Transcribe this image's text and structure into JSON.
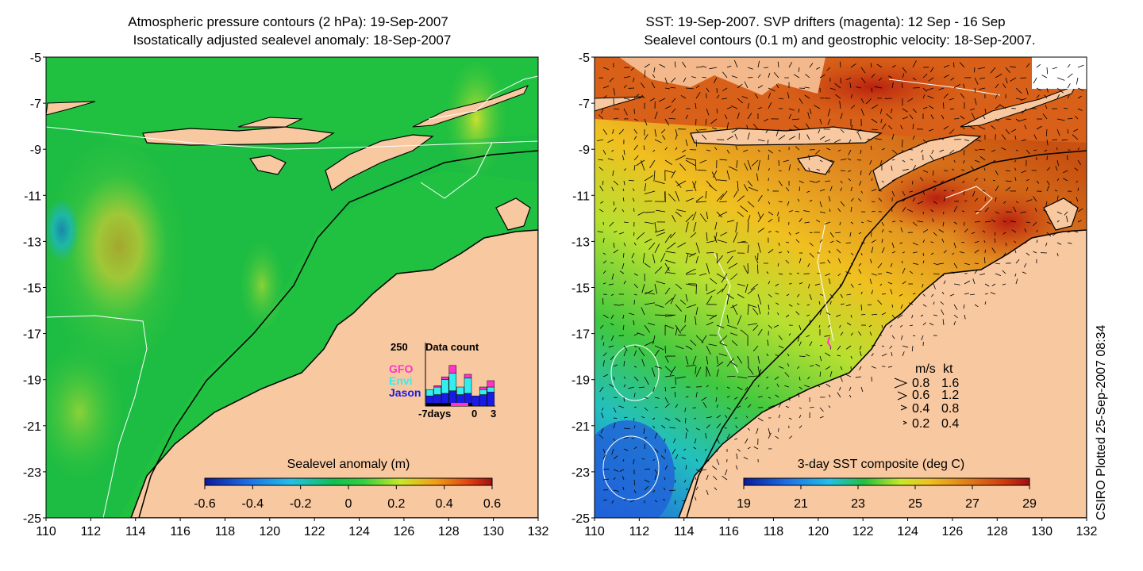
{
  "left_map": {
    "title_line1": "Atmospheric pressure contours (2 hPa): 19-Sep-2007",
    "title_line2": "Isostatically adjusted sealevel anomaly: 18-Sep-2007",
    "colorbar": {
      "label": "Sealevel anomaly (m)",
      "ticks": [
        "-0.6",
        "-0.4",
        "-0.2",
        "0",
        "0.2",
        "0.4",
        "0.6"
      ]
    },
    "inset": {
      "ymax_label": "250",
      "title": "Data count",
      "legend": [
        {
          "name": "GFO",
          "color": "#ff33cc"
        },
        {
          "name": "Envi",
          "color": "#33eeee"
        },
        {
          "name": "Jason",
          "color": "#1a1ae6"
        }
      ],
      "xticks": [
        "-7days",
        "0",
        "3"
      ],
      "bars": [
        {
          "jason": 40,
          "envi": 25,
          "gfo": 0
        },
        {
          "jason": 45,
          "envi": 30,
          "gfo": 5
        },
        {
          "jason": 50,
          "envi": 55,
          "gfo": 10
        },
        {
          "jason": 60,
          "envi": 70,
          "gfo": 30
        },
        {
          "jason": 45,
          "envi": 30,
          "gfo": 0
        },
        {
          "jason": 50,
          "envi": 60,
          "gfo": 15
        },
        {
          "jason": 40,
          "envi": 0,
          "gfo": 0
        },
        {
          "jason": 45,
          "envi": 20,
          "gfo": 10
        },
        {
          "jason": 55,
          "envi": 20,
          "gfo": 25
        }
      ]
    }
  },
  "right_map": {
    "title_line1": "SST: 19-Sep-2007. SVP drifters (magenta): 12 Sep - 16 Sep",
    "title_line2": "Sealevel contours (0.1 m) and geostrophic velocity: 18-Sep-2007.",
    "colorbar": {
      "label": "3-day SST composite (deg C)",
      "ticks": [
        "19",
        "21",
        "23",
        "25",
        "27",
        "29"
      ]
    },
    "velocity_legend": {
      "header_ms": "m/s",
      "header_kt": "kt",
      "rows": [
        {
          "ms": "0.8",
          "kt": "1.6"
        },
        {
          "ms": "0.6",
          "kt": "1.2"
        },
        {
          "ms": "0.4",
          "kt": "0.8"
        },
        {
          "ms": "0.2",
          "kt": "0.4"
        }
      ]
    }
  },
  "axes": {
    "lon_ticks": [
      "110",
      "112",
      "114",
      "116",
      "118",
      "120",
      "122",
      "124",
      "126",
      "128",
      "130",
      "132"
    ],
    "lat_ticks": [
      "-5",
      "-7",
      "-9",
      "-11",
      "-13",
      "-15",
      "-17",
      "-19",
      "-21",
      "-23",
      "-25"
    ]
  },
  "credit": "CSIRO Plotted 25-Sep-2007 08:34"
}
